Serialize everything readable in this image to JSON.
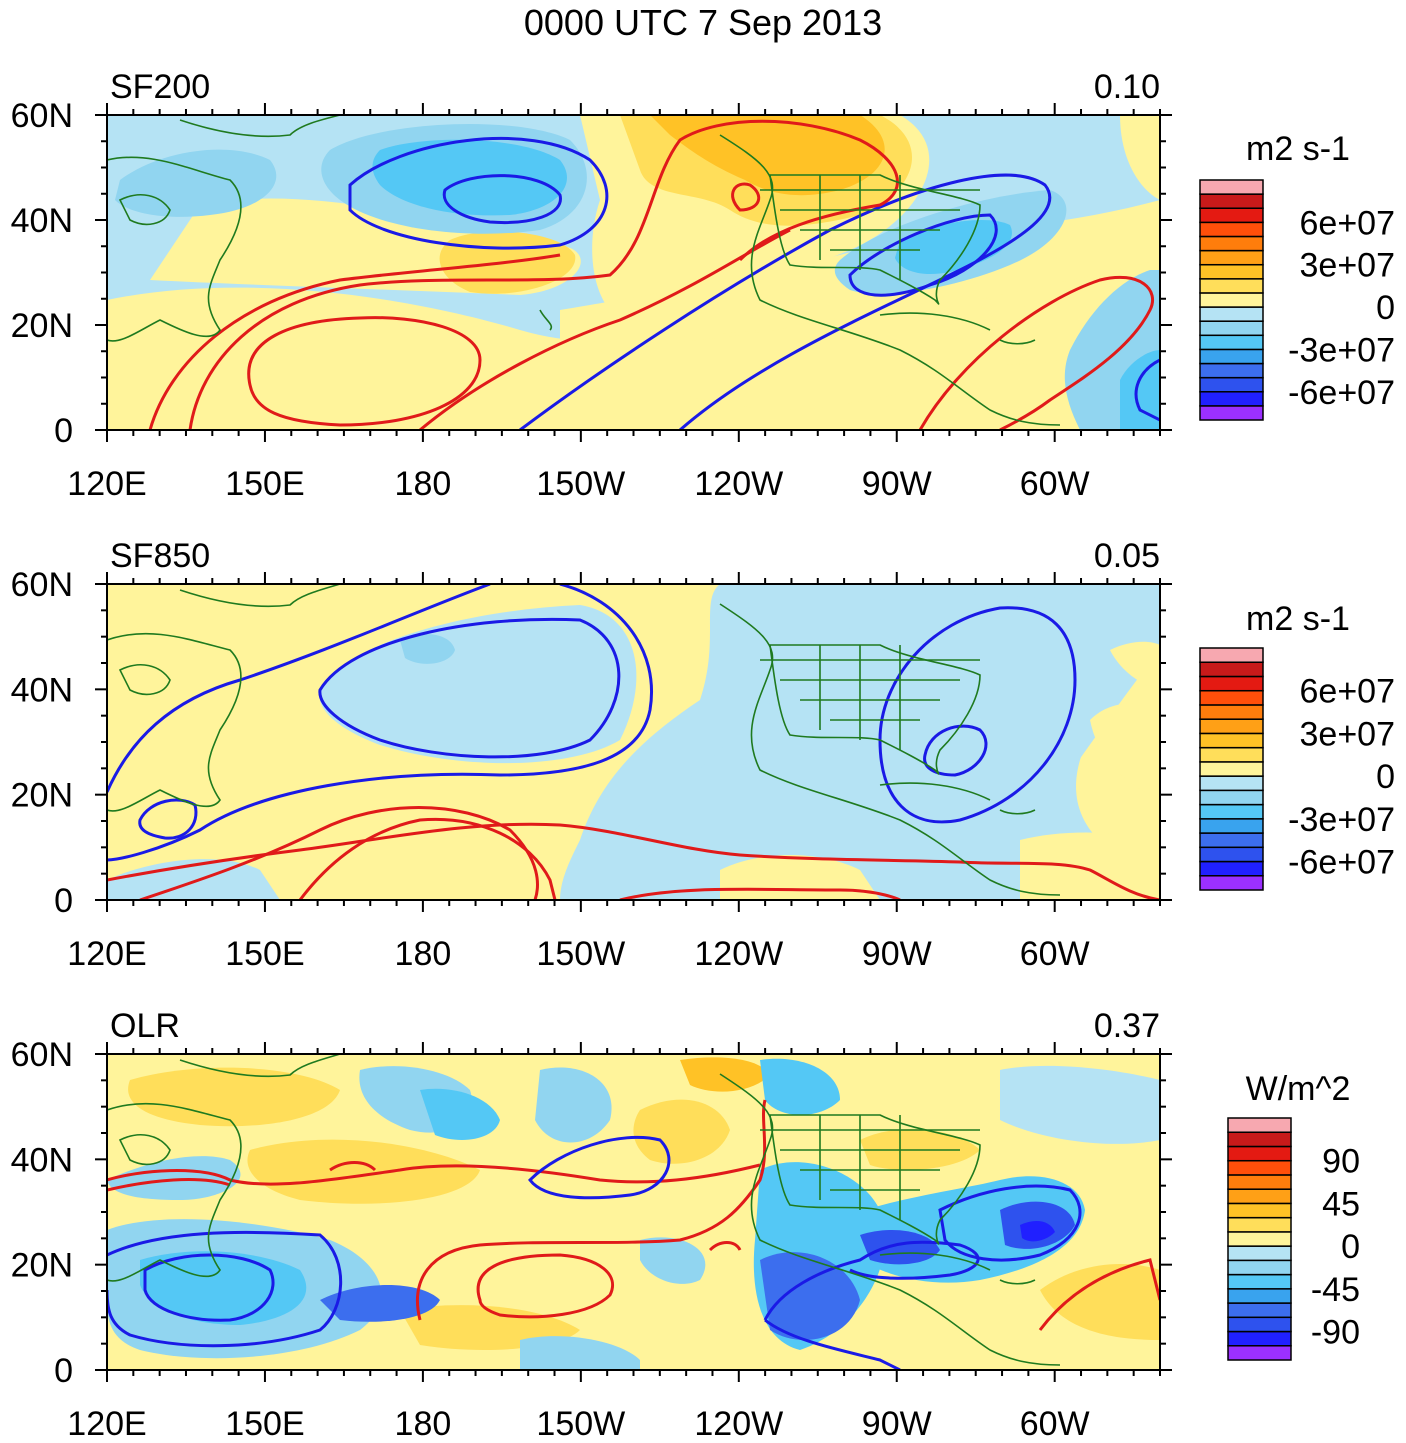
{
  "figure": {
    "title": "0000 UTC 7 Sep 2013"
  },
  "panels": [
    {
      "name": "SF200",
      "left_label": "SF200",
      "right_label": "0.10",
      "units": "m2 s-1",
      "colorbar_labels": [
        "6e+07",
        "3e+07",
        "0",
        "-3e+07",
        "-6e+07"
      ]
    },
    {
      "name": "SF850",
      "left_label": "SF850",
      "right_label": "0.05",
      "units": "m2 s-1",
      "colorbar_labels": [
        "6e+07",
        "3e+07",
        "0",
        "-3e+07",
        "-6e+07"
      ]
    },
    {
      "name": "OLR",
      "left_label": "OLR",
      "right_label": "0.37",
      "units": "W/m^2",
      "colorbar_labels": [
        "90",
        "45",
        "0",
        "-45",
        "-90"
      ]
    }
  ],
  "axes": {
    "lat_labels": [
      "60N",
      "40N",
      "20N",
      "0"
    ],
    "lon_labels": [
      "120E",
      "150E",
      "180",
      "150W",
      "120W",
      "90W",
      "60W"
    ]
  },
  "chart_data": {
    "type": "map",
    "domain": {
      "lon_min_E": 120,
      "lon_max_E": 320,
      "lat_min": 0,
      "lat_max": 60
    },
    "panels": [
      "SF200",
      "SF850",
      "OLR"
    ],
    "color_scale": {
      "colors": [
        "#9b30ff",
        "#2020ff",
        "#2e52ee",
        "#3c6eee",
        "#39a3ee",
        "#54c8f5",
        "#91d5f0",
        "#b5e3f4",
        "#fff49b",
        "#ffde5a",
        "#ffc226",
        "#ffa016",
        "#ff7d0c",
        "#ff4f0a",
        "#e41a12",
        "#c81a1a",
        "#f7a8b0"
      ]
    },
    "contour_colors": {
      "positive": "#e01a1a",
      "negative": "#1a1ae6"
    },
    "land_outline_color": "#1f7a1f"
  }
}
